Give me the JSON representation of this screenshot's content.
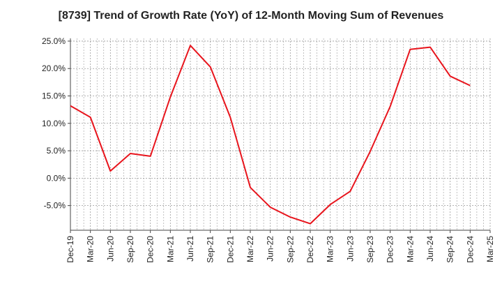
{
  "chart_data": {
    "type": "line",
    "title": "[8739]  Trend of Growth Rate (YoY) of 12-Month Moving Sum of Revenues",
    "xlabel": "",
    "ylabel": "",
    "x": [
      "Dec-19",
      "Mar-20",
      "Jun-20",
      "Sep-20",
      "Dec-20",
      "Mar-21",
      "Jun-21",
      "Sep-21",
      "Dec-21",
      "Mar-22",
      "Jun-22",
      "Sep-22",
      "Dec-22",
      "Mar-23",
      "Jun-23",
      "Sep-23",
      "Dec-23",
      "Mar-24",
      "Jun-24",
      "Sep-24",
      "Dec-24",
      "Mar-25"
    ],
    "series": [
      {
        "values": [
          13.2,
          11.1,
          1.3,
          4.5,
          4.0,
          14.8,
          24.2,
          20.3,
          11.1,
          -1.7,
          -5.3,
          -7.1,
          -8.3,
          -4.8,
          -2.4,
          4.9,
          13.1,
          23.5,
          23.9,
          18.6,
          16.9,
          null
        ]
      }
    ],
    "yticks": [
      "25.0%",
      "20.0%",
      "15.0%",
      "10.0%",
      "5.0%",
      "0.0%",
      "-5.0%"
    ],
    "ytick_values": [
      25,
      20,
      15,
      10,
      5,
      0,
      -5
    ],
    "ylim": [
      -9.5,
      25.5
    ],
    "grid": true,
    "colors": {
      "line": "#e8141c",
      "grid": "#999999",
      "axis": "#444444"
    }
  }
}
